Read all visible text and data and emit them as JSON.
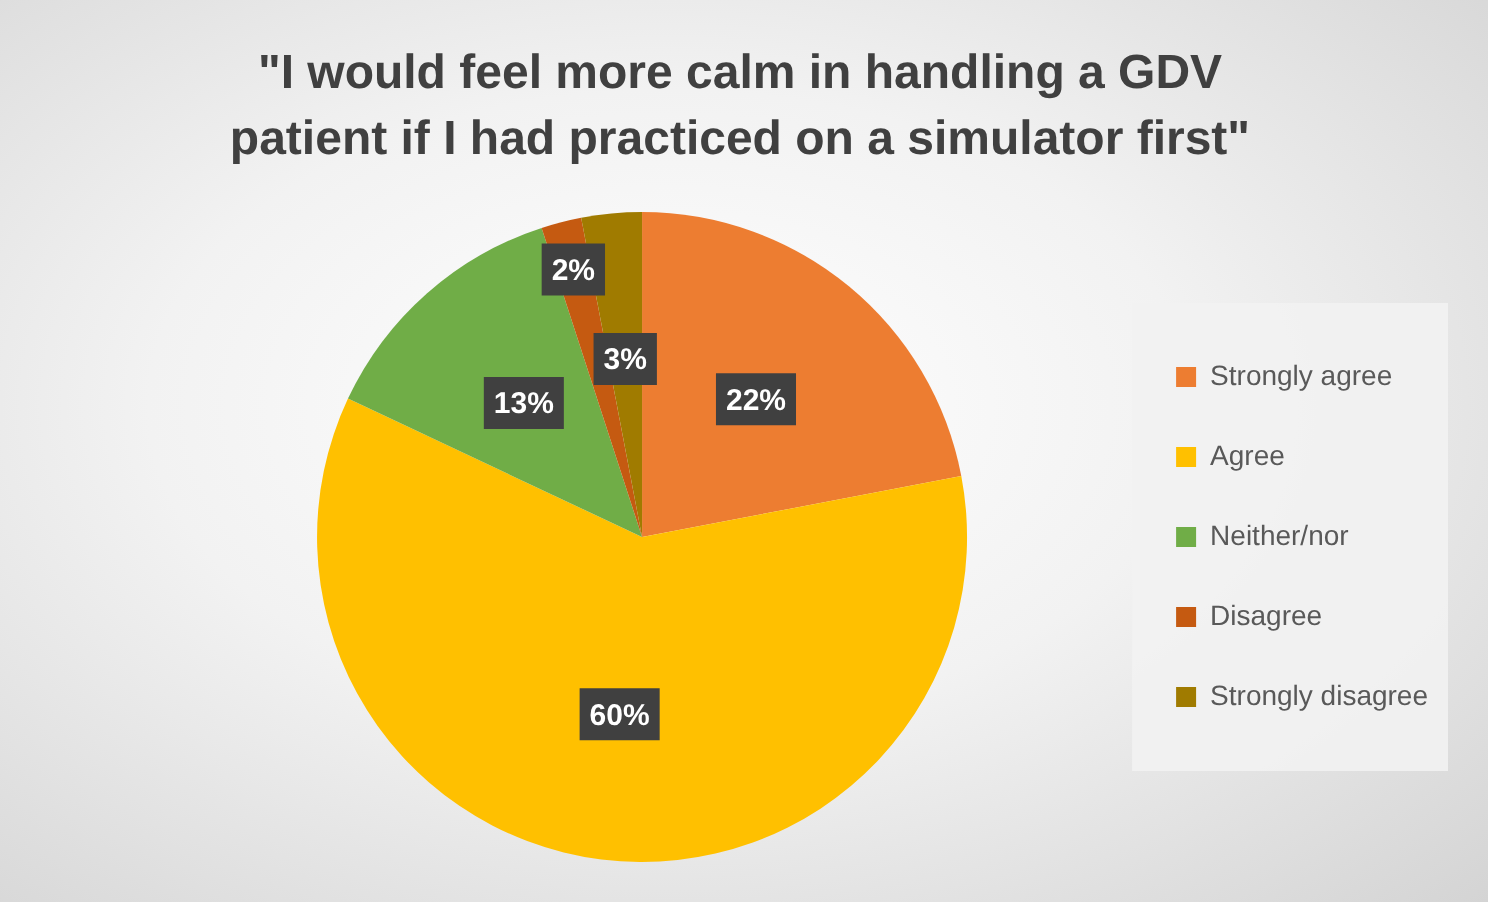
{
  "chart_data": {
    "type": "pie",
    "title": "\"I would feel more calm in handling a GDV patient if I had practiced on a simulator first\"",
    "categories": [
      "Strongly agree",
      "Agree",
      "Neither/nor",
      "Disagree",
      "Strongly disagree"
    ],
    "values": [
      22,
      60,
      13,
      2,
      3
    ],
    "colors": [
      "#ed7d31",
      "#ffc000",
      "#70ad47",
      "#c55a11",
      "#a07b00"
    ],
    "value_labels": [
      "22%",
      "60%",
      "13%",
      "2%",
      "3%"
    ],
    "legend": "right"
  }
}
